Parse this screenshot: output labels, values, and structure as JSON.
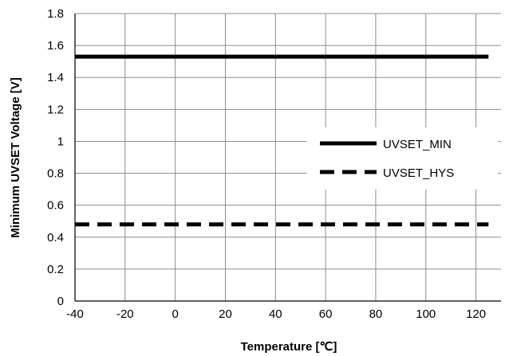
{
  "chart_data": {
    "type": "line",
    "xlabel": "Temperature [℃]",
    "ylabel": "Minimum UVSET Voltage [V]",
    "xlim": [
      -40,
      130
    ],
    "ylim": [
      0,
      1.8
    ],
    "x_ticks": [
      "-40",
      "-20",
      "0",
      "20",
      "40",
      "60",
      "80",
      "100",
      "120"
    ],
    "y_ticks": [
      "0",
      "0.2",
      "0.4",
      "0.6",
      "0.8",
      "1",
      "1.2",
      "1.4",
      "1.6",
      "1.8"
    ],
    "grid": true,
    "legend_position": "right",
    "series": [
      {
        "name": "UVSET_MIN",
        "style": "solid",
        "color": "#000000",
        "x": [
          -40,
          125
        ],
        "y": [
          1.53,
          1.53
        ]
      },
      {
        "name": "UVSET_HYS",
        "style": "dashed",
        "color": "#000000",
        "x": [
          -40,
          125
        ],
        "y": [
          0.48,
          0.48
        ]
      }
    ]
  }
}
